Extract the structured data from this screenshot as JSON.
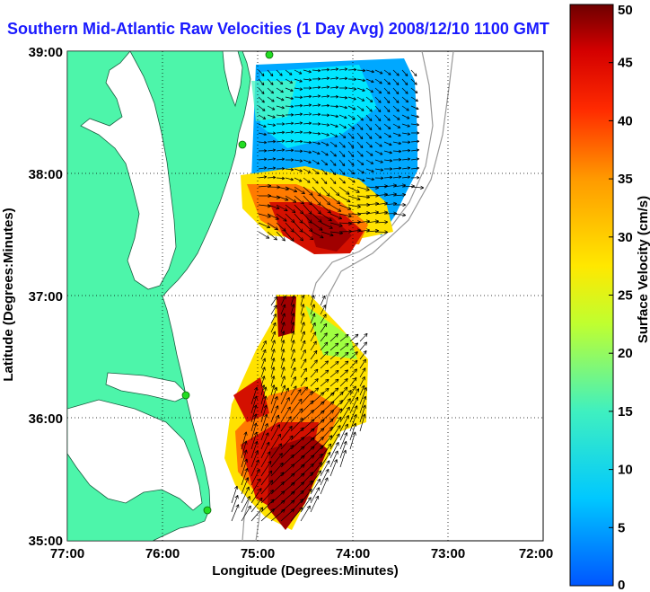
{
  "title": "Southern Mid-Atlantic Raw Velocities (1 Day Avg) 2008/12/10 1100 GMT",
  "xlabel": "Longitude (Degrees:Minutes)",
  "ylabel": "Latitude (Degrees:Minutes)",
  "x_ticks": [
    "77:00",
    "76:00",
    "75:00",
    "74:00",
    "73:00",
    "72:00"
  ],
  "y_ticks": [
    "39:00",
    "38:00",
    "37:00",
    "36:00",
    "35:00"
  ],
  "colorbar": {
    "label": "Surface Velocity (cm/s)",
    "ticks": [
      "50",
      "45",
      "40",
      "35",
      "30",
      "25",
      "20",
      "15",
      "10",
      "5",
      "0"
    ],
    "range": [
      0,
      50
    ]
  },
  "colors": {
    "land": "#4df5aa",
    "grid": "#000000",
    "bathymetry": "#999999",
    "station_marker": "#22dd22",
    "title_color": "#1a1aff"
  },
  "chart_data": {
    "type": "heatmap",
    "title": "Southern Mid-Atlantic Raw Velocities (1 Day Avg) 2008/12/10 1100 GMT",
    "xlabel": "Longitude (Degrees:Minutes)",
    "ylabel": "Latitude (Degrees:Minutes)",
    "xlim": [
      -77,
      -72
    ],
    "ylim": [
      35,
      39
    ],
    "colorbar_label": "Surface Velocity (cm/s)",
    "colorbar_range": [
      0,
      50
    ],
    "regions": [
      {
        "name": "north_field",
        "lon_range": [
          -75.1,
          -73.1
        ],
        "lat_range": [
          37.4,
          39.0
        ],
        "speed_range_cm_s": [
          5,
          45
        ]
      },
      {
        "name": "south_field",
        "lon_range": [
          -75.3,
          -73.8
        ],
        "lat_range": [
          35.1,
          37.0
        ],
        "speed_range_cm_s": [
          15,
          50
        ]
      }
    ],
    "stations": [
      {
        "lon": -74.95,
        "lat": 38.95
      },
      {
        "lon": -75.1,
        "lat": 38.23
      },
      {
        "lon": -75.25,
        "lat": 36.17
      },
      {
        "lon": -75.5,
        "lat": 35.23
      }
    ]
  }
}
